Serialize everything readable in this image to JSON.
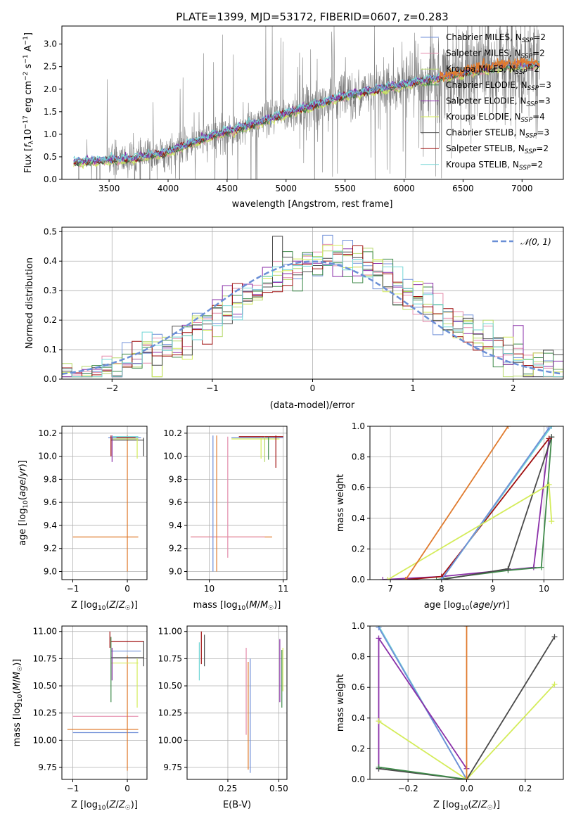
{
  "colors": {
    "Chabrier MILES": "#6f8fd8",
    "Salpeter MILES": "#e48cab",
    "Kroupa MILES": "#b7d96b",
    "Chabrier ELODIE": "#3f8a4a",
    "Salpeter ELODIE": "#8a2fa8",
    "Kroupa ELODIE": "#d4ec5a",
    "Chabrier STELIB": "#4a4a4a",
    "Salpeter STELIB": "#a01010",
    "Kroupa STELIB": "#72d6d6",
    "orange": "#e07b2e",
    "gray": "#808080",
    "normal": "#6a8fd6"
  },
  "chart_data": [
    {
      "id": "spectrum",
      "type": "line",
      "title": "PLATE=1399, MJD=53172, FIBERID=0607, z=0.283",
      "xlabel": "wavelength [Angstrom, rest frame]",
      "ylabel": "Flux [f_λ 10^-17 erg cm^-2 s^-1 A^-1]",
      "xlim": [
        3100,
        7350
      ],
      "ylim": [
        0,
        3.4
      ],
      "xticks": [
        3500,
        4000,
        4500,
        5000,
        5500,
        6000,
        6500,
        7000
      ],
      "yticks": [
        0.0,
        0.5,
        1.0,
        1.5,
        2.0,
        2.5,
        3.0
      ],
      "grid": false,
      "legend_position": "right",
      "legend": [
        {
          "label": "Chabrier MILES, N",
          "sub": "SSP",
          "eq": "=2",
          "series": "Chabrier MILES"
        },
        {
          "label": "Salpeter MILES, N",
          "sub": "SSP",
          "eq": "=2",
          "series": "Salpeter MILES"
        },
        {
          "label": "Kroupa MILES, N",
          "sub": "SSP",
          "eq": "=2",
          "series": "Kroupa MILES"
        },
        {
          "label": "Chabrier ELODIE, N",
          "sub": "SSP",
          "eq": "=3",
          "series": "Chabrier ELODIE"
        },
        {
          "label": "Salpeter ELODIE, N",
          "sub": "SSP",
          "eq": "=3",
          "series": "Salpeter ELODIE"
        },
        {
          "label": "Kroupa ELODIE, N",
          "sub": "SSP",
          "eq": "=4",
          "series": "Kroupa ELODIE"
        },
        {
          "label": "Chabrier STELIB, N",
          "sub": "SSP",
          "eq": "=3",
          "series": "Chabrier STELIB"
        },
        {
          "label": "Salpeter STELIB, N",
          "sub": "SSP",
          "eq": "=2",
          "series": "Salpeter STELIB"
        },
        {
          "label": "Kroupa STELIB, N",
          "sub": "SSP",
          "eq": "=2",
          "series": "Kroupa STELIB"
        }
      ],
      "continuum_knots": [
        [
          3200,
          0.38
        ],
        [
          3700,
          0.45
        ],
        [
          4000,
          0.6
        ],
        [
          4300,
          0.9
        ],
        [
          4700,
          1.2
        ],
        [
          5000,
          1.45
        ],
        [
          5500,
          1.85
        ],
        [
          6000,
          2.1
        ],
        [
          6400,
          2.3
        ],
        [
          6800,
          2.5
        ],
        [
          7150,
          2.55
        ]
      ]
    },
    {
      "id": "residuals",
      "type": "histogram",
      "xlabel": "(data-model)/error",
      "ylabel": "Normed distribution",
      "xlim": [
        -2.5,
        2.5
      ],
      "ylim": [
        0,
        0.515
      ],
      "xticks": [
        -2,
        -1,
        0,
        1,
        2
      ],
      "yticks": [
        0.0,
        0.1,
        0.2,
        0.3,
        0.4,
        0.5
      ],
      "grid": true,
      "legend_position": "top-right",
      "legend": [
        {
          "label": "𝒩(0, 1)"
        }
      ],
      "bin_width": 0.1
    },
    {
      "id": "z-age",
      "type": "errorbar",
      "xlabel": "Z [log10(Z/Z☉)]",
      "ylabel": "age [log10(age/yr)]",
      "xlim": [
        -1.2,
        0.36
      ],
      "ylim": [
        8.93,
        10.26
      ],
      "xticks": [
        -1,
        0
      ],
      "yticks": [
        9.0,
        9.2,
        9.4,
        9.6,
        9.8,
        10.0,
        10.2
      ],
      "grid": true
    },
    {
      "id": "mass-age",
      "type": "errorbar",
      "xlabel": "mass [log10(M/M☉)]",
      "ylabel": "",
      "xlim": [
        9.7,
        11.05
      ],
      "ylim": [
        8.93,
        10.26
      ],
      "xticks": [
        10,
        11
      ],
      "yticks": [
        9.0,
        9.2,
        9.4,
        9.6,
        9.8,
        10.0,
        10.2
      ],
      "grid": true
    },
    {
      "id": "age-weight",
      "type": "line",
      "xlabel": "age [log10(age/yr)]",
      "ylabel": "mass weight",
      "xlim": [
        6.6,
        10.38
      ],
      "ylim": [
        0,
        1.0
      ],
      "xticks": [
        7,
        8,
        9,
        10
      ],
      "yticks": [
        0.0,
        0.2,
        0.4,
        0.6,
        0.8,
        1.0
      ],
      "grid": true
    },
    {
      "id": "z-mass",
      "type": "errorbar",
      "xlabel": "Z [log10(Z/Z☉)]",
      "ylabel": "mass [log10(M/M☉)]",
      "xlim": [
        -1.2,
        0.36
      ],
      "ylim": [
        9.64,
        11.05
      ],
      "xticks": [
        -1,
        0
      ],
      "yticks": [
        9.75,
        10.0,
        10.25,
        10.5,
        10.75,
        11.0
      ],
      "grid": true
    },
    {
      "id": "ebv-mass",
      "type": "errorbar",
      "xlabel": "E(B-V)",
      "ylabel": "",
      "xlim": [
        0.05,
        0.54
      ],
      "ylim": [
        9.64,
        11.05
      ],
      "xticks": [
        0.25,
        0.5
      ],
      "yticks": [
        9.75,
        10.0,
        10.25,
        10.5,
        10.75,
        11.0
      ],
      "grid": true
    },
    {
      "id": "z-weight",
      "type": "line",
      "xlabel": "Z [log10(Z/Z☉)]",
      "ylabel": "mass weight",
      "xlim": [
        -0.33,
        0.33
      ],
      "ylim": [
        0,
        1.0
      ],
      "xticks": [
        -0.2,
        0.0,
        0.2
      ],
      "yticks": [
        0.0,
        0.2,
        0.4,
        0.6,
        0.8,
        1.0
      ],
      "grid": true
    }
  ]
}
